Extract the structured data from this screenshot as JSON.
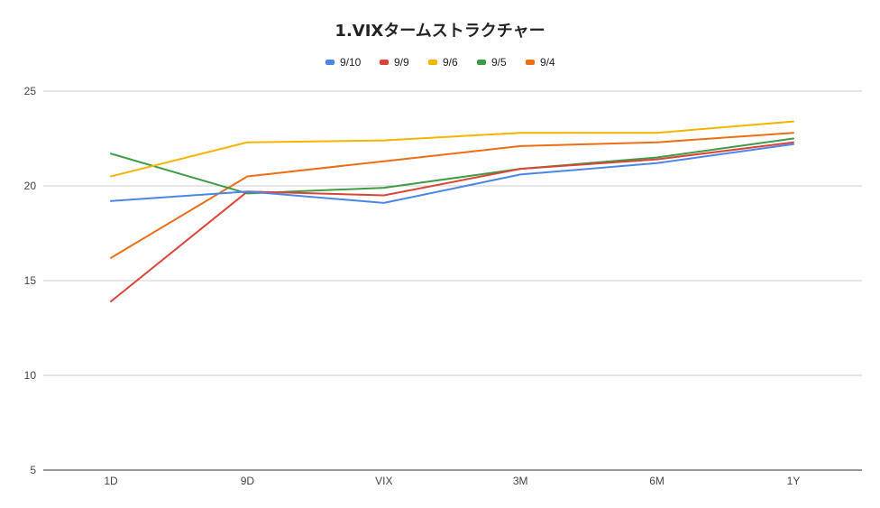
{
  "chart_data": {
    "type": "line",
    "title": "1.VIXタームストラクチャー",
    "xlabel": "",
    "ylabel": "",
    "categories": [
      "1D",
      "9D",
      "VIX",
      "3M",
      "6M",
      "1Y"
    ],
    "ylim": [
      5,
      25
    ],
    "yticks": [
      5,
      10,
      15,
      20,
      25
    ],
    "grid": true,
    "legend_position": "top",
    "series": [
      {
        "name": "9/10",
        "color": "#4a86e8",
        "values": [
          19.2,
          19.7,
          19.1,
          20.6,
          21.2,
          22.2
        ]
      },
      {
        "name": "9/9",
        "color": "#db4437",
        "values": [
          13.9,
          19.7,
          19.5,
          20.9,
          21.4,
          22.3
        ]
      },
      {
        "name": "9/6",
        "color": "#f4b400",
        "values": [
          20.5,
          22.3,
          22.4,
          22.8,
          22.8,
          23.4
        ]
      },
      {
        "name": "9/5",
        "color": "#3e9c46",
        "values": [
          21.7,
          19.6,
          19.9,
          20.9,
          21.5,
          22.5
        ]
      },
      {
        "name": "9/4",
        "color": "#ec6e16",
        "values": [
          16.2,
          20.5,
          21.3,
          22.1,
          22.3,
          22.8
        ]
      }
    ]
  }
}
